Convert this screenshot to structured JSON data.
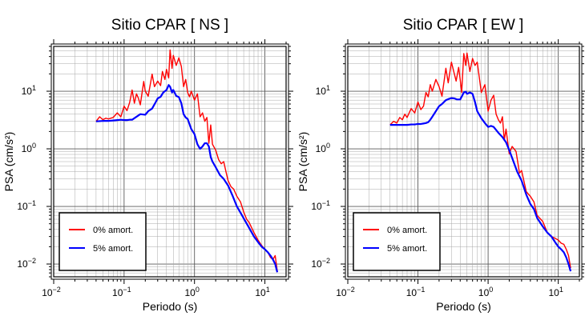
{
  "chart_data": [
    {
      "type": "line",
      "title": "Sitio CPAR [ NS ]",
      "xlabel": "Periodo (s)",
      "ylabel": "PSA (cm/s²)",
      "x_scale": "log",
      "y_scale": "log",
      "xlim": [
        0.01,
        20
      ],
      "ylim": [
        0.006,
        60
      ],
      "x_ticks": [
        {
          "value": 0.01,
          "mantissa": "10",
          "exp": "−2"
        },
        {
          "value": 0.1,
          "mantissa": "10",
          "exp": "−1"
        },
        {
          "value": 1,
          "mantissa": "10",
          "exp": "0"
        },
        {
          "value": 10,
          "mantissa": "10",
          "exp": "1"
        }
      ],
      "y_ticks": [
        {
          "value": 0.01,
          "mantissa": "10",
          "exp": "−2"
        },
        {
          "value": 0.1,
          "mantissa": "10",
          "exp": "−1"
        },
        {
          "value": 1,
          "mantissa": "10",
          "exp": "0"
        },
        {
          "value": 10,
          "mantissa": "10",
          "exp": "1"
        }
      ],
      "grid": true,
      "legend_position": "bottom-left",
      "series": [
        {
          "name": "0% amort.",
          "color": "#ff0000",
          "x": [
            0.04,
            0.045,
            0.05,
            0.055,
            0.06,
            0.07,
            0.08,
            0.09,
            0.1,
            0.11,
            0.12,
            0.13,
            0.14,
            0.15,
            0.16,
            0.17,
            0.19,
            0.2,
            0.22,
            0.25,
            0.27,
            0.3,
            0.33,
            0.35,
            0.38,
            0.4,
            0.43,
            0.45,
            0.48,
            0.5,
            0.55,
            0.6,
            0.65,
            0.7,
            0.75,
            0.8,
            0.85,
            0.9,
            1.0,
            1.1,
            1.2,
            1.3,
            1.4,
            1.5,
            1.6,
            1.7,
            1.8,
            2.0,
            2.2,
            2.4,
            2.6,
            2.8,
            3.0,
            3.3,
            3.6,
            4.0,
            4.5,
            5.0,
            5.5,
            6.0,
            7.0,
            8.0,
            9.0,
            10.0,
            11.0,
            12.0,
            13.0,
            14.0,
            15.0
          ],
          "y": [
            3.0,
            3.6,
            3.2,
            3.4,
            3.3,
            3.5,
            4.2,
            3.6,
            5.5,
            4.6,
            6.4,
            10.5,
            6.2,
            9.0,
            7.5,
            5.8,
            14.8,
            10.0,
            8.2,
            19.8,
            12.0,
            15.0,
            12.5,
            22.0,
            16.0,
            24.0,
            17.0,
            52.0,
            25.0,
            42.0,
            28.0,
            38.0,
            27.0,
            12.0,
            16.0,
            9.5,
            8.0,
            10.0,
            7.0,
            9.0,
            3.6,
            4.2,
            3.0,
            3.5,
            1.25,
            2.6,
            1.2,
            0.95,
            0.65,
            0.55,
            0.6,
            0.4,
            0.28,
            0.22,
            0.2,
            0.15,
            0.12,
            0.08,
            0.06,
            0.052,
            0.035,
            0.026,
            0.021,
            0.018,
            0.016,
            0.013,
            0.012,
            0.014,
            0.0075
          ]
        },
        {
          "name": "5% amort.",
          "color": "#0000ff",
          "x": [
            0.04,
            0.05,
            0.06,
            0.07,
            0.08,
            0.09,
            0.1,
            0.11,
            0.12,
            0.13,
            0.15,
            0.17,
            0.2,
            0.22,
            0.25,
            0.28,
            0.3,
            0.33,
            0.36,
            0.4,
            0.43,
            0.45,
            0.48,
            0.5,
            0.55,
            0.6,
            0.65,
            0.7,
            0.75,
            0.8,
            0.9,
            1.0,
            1.1,
            1.2,
            1.3,
            1.4,
            1.5,
            1.6,
            1.7,
            1.8,
            2.0,
            2.3,
            2.6,
            3.0,
            3.5,
            4.0,
            4.5,
            5.0,
            6.0,
            7.0,
            8.0,
            9.0,
            10.0,
            11.0,
            12.0,
            13.0,
            14.0,
            15.0
          ],
          "y": [
            3.0,
            3.05,
            3.05,
            3.1,
            3.15,
            3.2,
            3.15,
            3.15,
            3.2,
            3.2,
            3.6,
            4.0,
            3.9,
            4.5,
            5.0,
            6.4,
            7.5,
            8.0,
            9.5,
            10.5,
            12.8,
            12.0,
            9.5,
            10.5,
            8.3,
            7.9,
            6.2,
            4.0,
            3.5,
            3.3,
            2.2,
            1.8,
            1.2,
            1.0,
            1.1,
            1.25,
            1.25,
            1.1,
            0.72,
            0.6,
            0.48,
            0.35,
            0.3,
            0.23,
            0.15,
            0.1,
            0.078,
            0.062,
            0.042,
            0.03,
            0.024,
            0.02,
            0.018,
            0.016,
            0.014,
            0.012,
            0.01,
            0.0072
          ]
        }
      ]
    },
    {
      "type": "line",
      "title": "Sitio CPAR [ EW ]",
      "xlabel": "Periodo (s)",
      "ylabel": "PSA (cm/s²)",
      "x_scale": "log",
      "y_scale": "log",
      "xlim": [
        0.01,
        20
      ],
      "ylim": [
        0.006,
        60
      ],
      "x_ticks": [
        {
          "value": 0.01,
          "mantissa": "10",
          "exp": "−2"
        },
        {
          "value": 0.1,
          "mantissa": "10",
          "exp": "−1"
        },
        {
          "value": 1,
          "mantissa": "10",
          "exp": "0"
        },
        {
          "value": 10,
          "mantissa": "10",
          "exp": "1"
        }
      ],
      "y_ticks": [
        {
          "value": 0.01,
          "mantissa": "10",
          "exp": "−2"
        },
        {
          "value": 0.1,
          "mantissa": "10",
          "exp": "−1"
        },
        {
          "value": 1,
          "mantissa": "10",
          "exp": "0"
        },
        {
          "value": 10,
          "mantissa": "10",
          "exp": "1"
        }
      ],
      "grid": true,
      "legend_position": "bottom-left",
      "series": [
        {
          "name": "0% amort.",
          "color": "#ff0000",
          "x": [
            0.04,
            0.045,
            0.05,
            0.055,
            0.06,
            0.065,
            0.07,
            0.08,
            0.09,
            0.1,
            0.11,
            0.12,
            0.13,
            0.14,
            0.15,
            0.16,
            0.18,
            0.2,
            0.22,
            0.25,
            0.27,
            0.3,
            0.33,
            0.35,
            0.38,
            0.4,
            0.42,
            0.45,
            0.48,
            0.5,
            0.55,
            0.6,
            0.65,
            0.7,
            0.8,
            0.9,
            1.0,
            1.1,
            1.2,
            1.3,
            1.4,
            1.5,
            1.6,
            1.7,
            1.8,
            2.0,
            2.2,
            2.5,
            2.8,
            3.0,
            3.5,
            4.0,
            4.5,
            5.0,
            6.0,
            7.0,
            8.0,
            9.0,
            10.0,
            11.0,
            12.0,
            13.0,
            14.0,
            15.0
          ],
          "y": [
            2.6,
            3.0,
            2.8,
            3.5,
            3.2,
            4.0,
            3.5,
            5.0,
            4.2,
            6.5,
            4.8,
            5.5,
            9.5,
            8.0,
            13.0,
            10.0,
            16.0,
            12.0,
            8.2,
            25.0,
            14.0,
            32.0,
            20.0,
            15.0,
            26.0,
            16.0,
            9.5,
            45.0,
            28.0,
            46.0,
            22.0,
            37.0,
            28.0,
            32.0,
            9.5,
            13.0,
            4.5,
            7.0,
            8.5,
            4.0,
            3.2,
            2.8,
            3.6,
            1.4,
            2.2,
            0.82,
            1.1,
            0.9,
            0.38,
            0.42,
            0.18,
            0.15,
            0.12,
            0.07,
            0.055,
            0.035,
            0.03,
            0.028,
            0.026,
            0.023,
            0.022,
            0.018,
            0.014,
            0.0085
          ]
        },
        {
          "name": "5% amort.",
          "color": "#0000ff",
          "x": [
            0.04,
            0.05,
            0.06,
            0.07,
            0.08,
            0.09,
            0.1,
            0.11,
            0.12,
            0.13,
            0.14,
            0.15,
            0.16,
            0.18,
            0.2,
            0.22,
            0.25,
            0.28,
            0.3,
            0.33,
            0.36,
            0.4,
            0.43,
            0.45,
            0.48,
            0.5,
            0.55,
            0.6,
            0.65,
            0.7,
            0.8,
            0.9,
            1.0,
            1.1,
            1.2,
            1.4,
            1.6,
            1.8,
            2.0,
            2.3,
            2.6,
            3.0,
            3.5,
            4.0,
            4.5,
            5.0,
            6.0,
            7.0,
            8.0,
            9.0,
            10.0,
            11.0,
            12.0,
            13.0,
            14.0,
            15.0
          ],
          "y": [
            2.6,
            2.6,
            2.6,
            2.6,
            2.65,
            2.65,
            2.7,
            2.7,
            2.75,
            2.8,
            2.9,
            3.2,
            3.6,
            4.5,
            5.5,
            6.0,
            7.0,
            7.4,
            7.6,
            7.5,
            7.2,
            7.2,
            8.5,
            9.5,
            9.8,
            9.0,
            9.5,
            9.0,
            6.5,
            4.5,
            3.4,
            2.8,
            2.4,
            2.5,
            2.4,
            1.9,
            1.6,
            1.3,
            0.95,
            0.6,
            0.4,
            0.28,
            0.16,
            0.11,
            0.09,
            0.063,
            0.045,
            0.035,
            0.03,
            0.024,
            0.02,
            0.018,
            0.016,
            0.013,
            0.01,
            0.0075
          ]
        }
      ]
    }
  ]
}
